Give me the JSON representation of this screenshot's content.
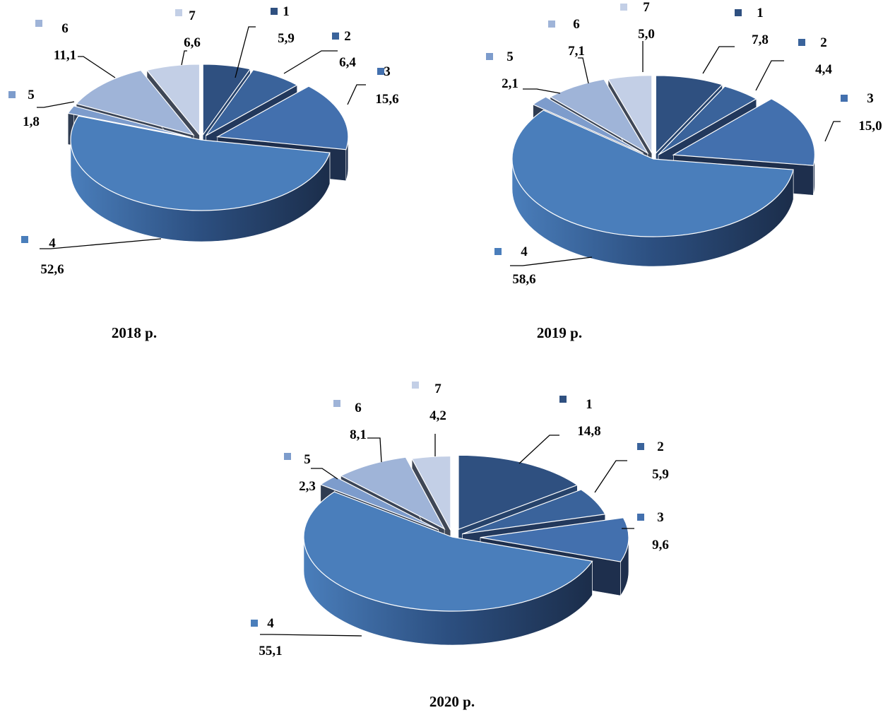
{
  "chart_data": [
    {
      "type": "pie",
      "title": "2018 р.",
      "categories": [
        "1",
        "2",
        "3",
        "4",
        "5",
        "6",
        "7"
      ],
      "values": [
        5.9,
        6.4,
        15.6,
        52.6,
        1.8,
        11.1,
        6.6
      ],
      "value_labels": [
        "5,9",
        "6,4",
        "15,6",
        "52,6",
        "1,8",
        "11,1",
        "6,6"
      ],
      "legend": "labels beside each slice"
    },
    {
      "type": "pie",
      "title": "2019 р.",
      "categories": [
        "1",
        "2",
        "3",
        "4",
        "5",
        "6",
        "7"
      ],
      "values": [
        7.8,
        4.4,
        15.0,
        58.6,
        2.1,
        7.1,
        5.0
      ],
      "value_labels": [
        "7,8",
        "4,4",
        "15,0",
        "58,6",
        "2,1",
        "7,1",
        "5,0"
      ],
      "legend": "labels beside each slice"
    },
    {
      "type": "pie",
      "title": "2020 р.",
      "categories": [
        "1",
        "2",
        "3",
        "4",
        "5",
        "6",
        "7"
      ],
      "values": [
        14.8,
        5.9,
        9.6,
        55.1,
        2.3,
        8.1,
        4.2
      ],
      "value_labels": [
        "14,8",
        "5,9",
        "9,6",
        "55,1",
        "2,3",
        "8,1",
        "4,2"
      ],
      "legend": "labels beside each slice"
    }
  ],
  "colors": [
    "#2F5080",
    "#3A639B",
    "#4370AE",
    "#4A7EBB",
    "#7D9CCC",
    "#9FB4D8",
    "#C3CFE6"
  ],
  "side_colors": [
    "#26426A",
    "#22385C",
    "#1E2F4D",
    "#22395E",
    "#2F3C52",
    "#3A4456",
    "#3F4756"
  ]
}
